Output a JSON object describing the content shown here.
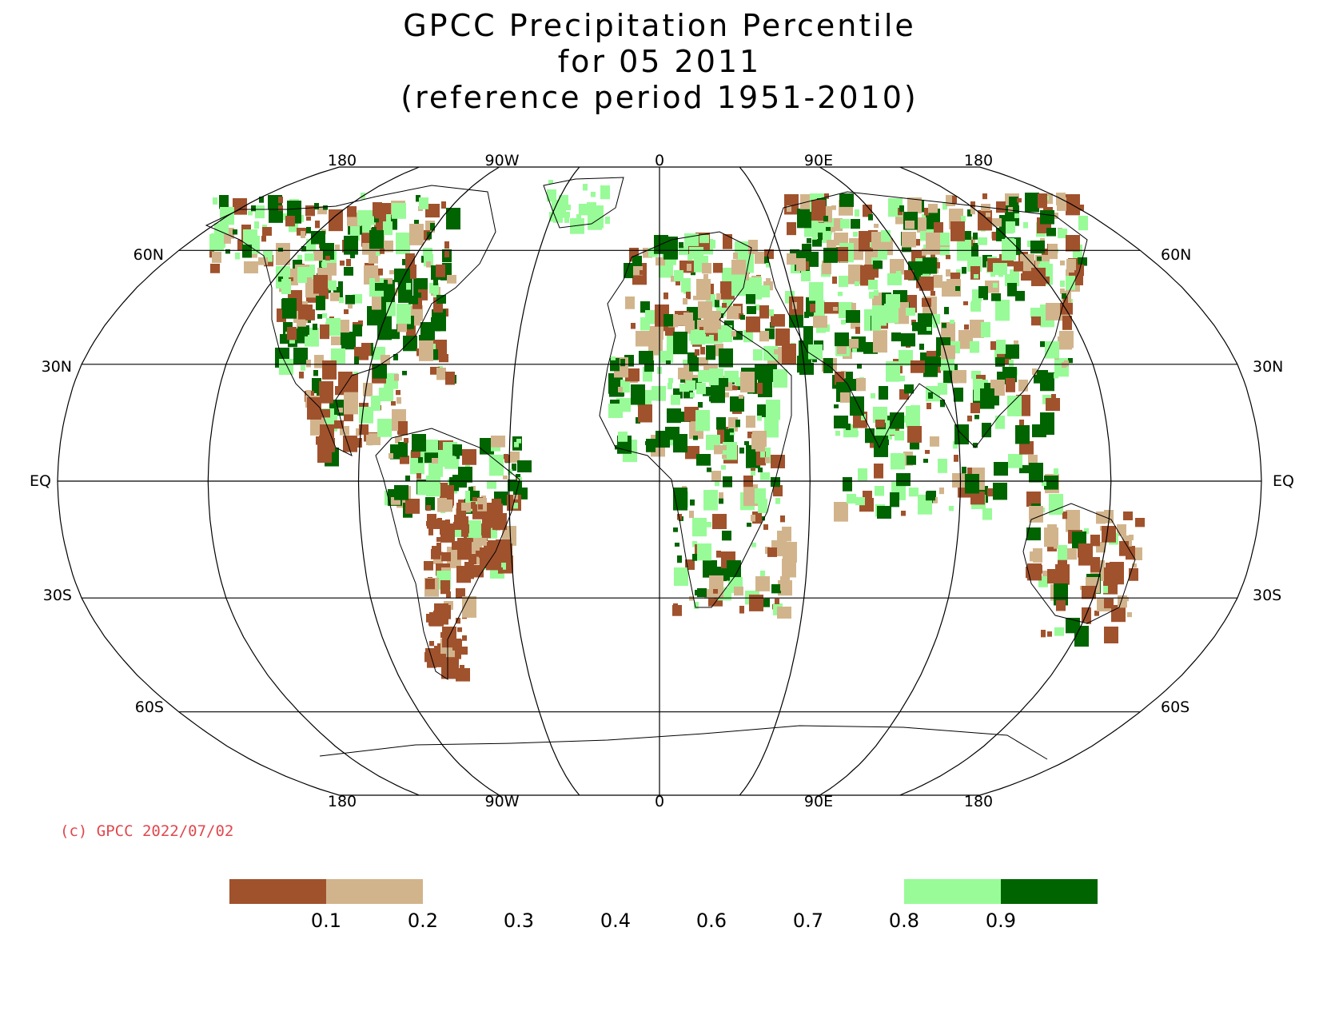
{
  "title": {
    "line1": "GPCC Precipitation Percentile",
    "line2": "for 05 2011",
    "line3": "(reference period 1951-2010)"
  },
  "copyright": "(c) GPCC 2022/07/02",
  "map": {
    "projection": "Robinson",
    "center_longitude": "0",
    "top_longitude_labels": [
      "180",
      "90W",
      "0",
      "90E",
      "180"
    ],
    "bottom_longitude_labels": [
      "180",
      "90W",
      "0",
      "90E",
      "180"
    ],
    "latitude_labels_left": [
      "60N",
      "30N",
      "EQ",
      "30S",
      "60S"
    ],
    "latitude_labels_right": [
      "60N",
      "30N",
      "EQ",
      "30S",
      "60S"
    ]
  },
  "legend": {
    "ticks": [
      "0.1",
      "0.2",
      "0.3",
      "0.4",
      "0.6",
      "0.7",
      "0.8",
      "0.9"
    ],
    "classes": [
      {
        "range": "< 0.1",
        "color": "#a0522d"
      },
      {
        "range": "0.1 - 0.2",
        "color": "#d2b48c"
      },
      {
        "range": "0.2 - 0.8",
        "color": "#ffffff"
      },
      {
        "range": "0.8 - 0.9",
        "color": "#98fb98"
      },
      {
        "range": "> 0.9",
        "color": "#006400"
      }
    ]
  },
  "colors": {
    "very_dry": "#a0522d",
    "dry": "#d2b48c",
    "wet": "#98fb98",
    "very_wet": "#006400",
    "copyright": "#e0484d"
  }
}
